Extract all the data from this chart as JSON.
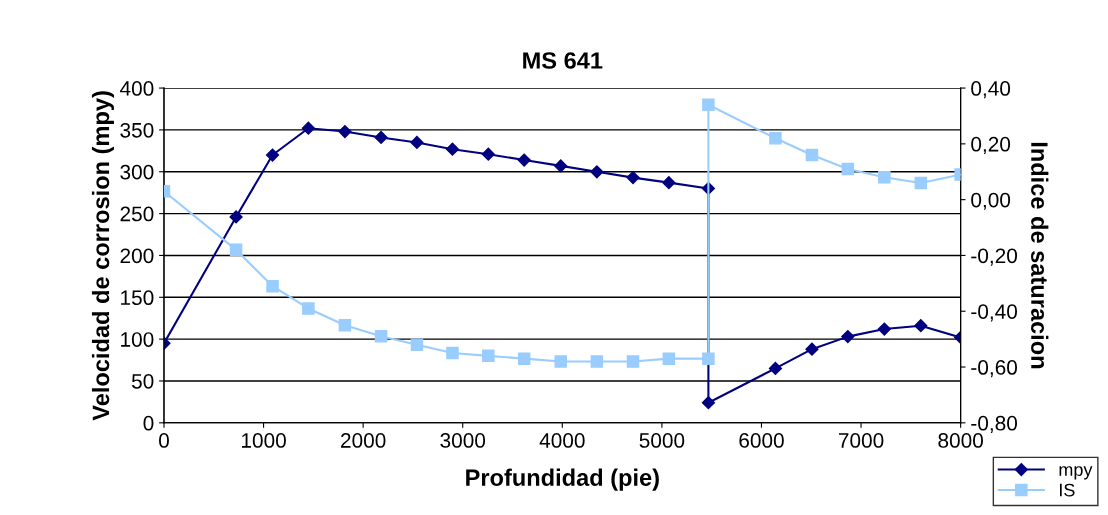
{
  "chart_data": {
    "type": "line",
    "title": "MS 641",
    "xlabel": "Profundidad (pie)",
    "ylabel": "Velocidad de corrosion (mpy)",
    "y2label": "Indice de saturacion",
    "xlim": [
      0,
      8000
    ],
    "xticks": [
      0,
      1000,
      2000,
      3000,
      4000,
      5000,
      6000,
      7000,
      8000
    ],
    "ylim": [
      0,
      400
    ],
    "yticks": [
      0,
      50,
      100,
      150,
      200,
      250,
      300,
      350,
      400
    ],
    "y2lim": [
      -0.8,
      0.4
    ],
    "y2ticks": [
      {
        "value": -0.8,
        "label": "-0,80"
      },
      {
        "value": -0.6,
        "label": "-0,60"
      },
      {
        "value": -0.4,
        "label": "-0,40"
      },
      {
        "value": -0.2,
        "label": "-0,20"
      },
      {
        "value": 0,
        "label": "0,00"
      },
      {
        "value": 0.2,
        "label": "0,20"
      },
      {
        "value": 0.4,
        "label": "0,40"
      }
    ],
    "grid": "y",
    "legend": "bottom right",
    "line_style": "solid",
    "series": [
      {
        "name": "mpy",
        "color": "#000080",
        "marker": "diamond",
        "x": [
          0,
          724,
          1090,
          1450,
          1817,
          2180,
          2540,
          2897,
          3257,
          3617,
          3984,
          4347,
          4710,
          5070,
          5467,
          5467,
          6140,
          6507,
          6867,
          7234,
          7600,
          8000
        ],
        "values": [
          95,
          246,
          320,
          352,
          348,
          341,
          335,
          327,
          321,
          314,
          307,
          300,
          293,
          287,
          280,
          24,
          65,
          88,
          103,
          112,
          116,
          102
        ]
      },
      {
        "name": "IS",
        "color": "#99ccff",
        "marker": "square",
        "axis": "y2",
        "x": [
          0,
          724,
          1090,
          1450,
          1817,
          2180,
          2540,
          2897,
          3257,
          3617,
          3984,
          4347,
          4710,
          5070,
          5467,
          5467,
          6140,
          6507,
          6867,
          7234,
          7600,
          8000
        ],
        "values": [
          0.03,
          -0.18,
          -0.31,
          -0.39,
          -0.45,
          -0.49,
          -0.52,
          -0.55,
          -0.56,
          -0.57,
          -0.58,
          -0.58,
          -0.58,
          -0.57,
          -0.57,
          0.34,
          0.22,
          0.16,
          0.11,
          0.08,
          0.06,
          0.09
        ]
      }
    ]
  }
}
